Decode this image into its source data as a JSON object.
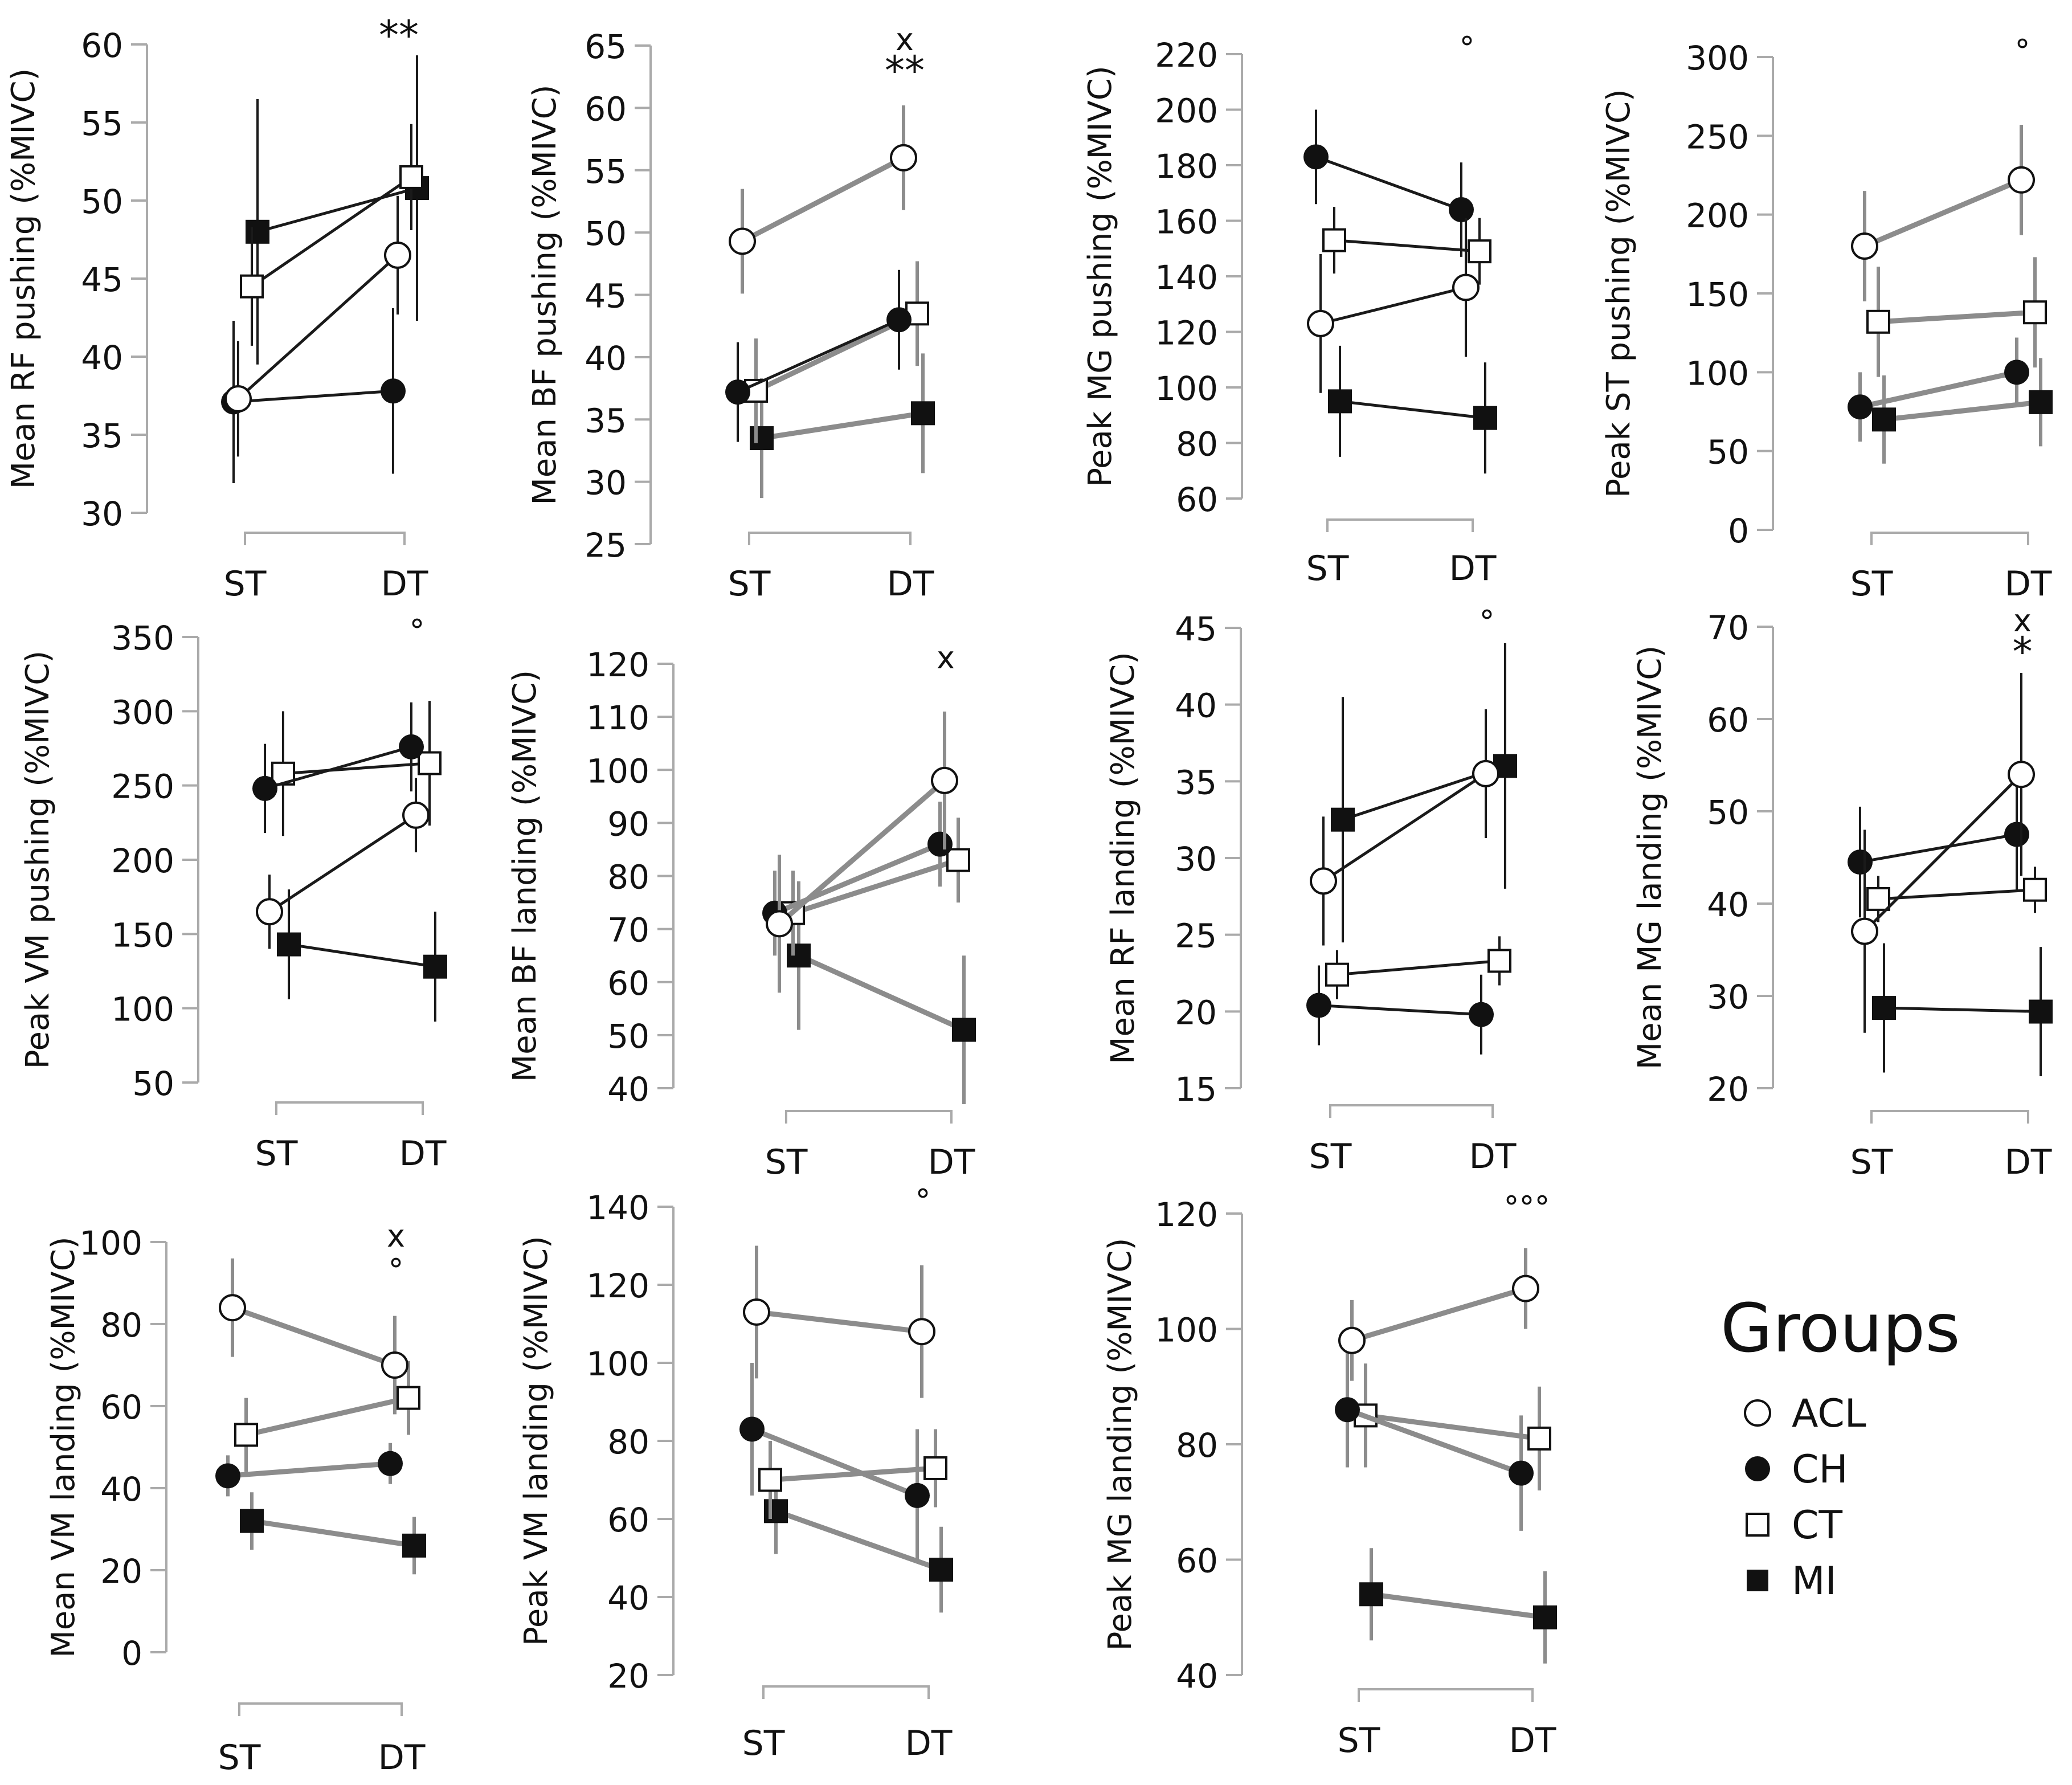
{
  "figure": {
    "legend_title": "Groups"
  },
  "legend": [
    {
      "key": "ACL",
      "label": "ACL",
      "marker": "circle-open"
    },
    {
      "key": "CH",
      "label": "CH",
      "marker": "circle-filled"
    },
    {
      "key": "CT",
      "label": "CT",
      "marker": "square-open"
    },
    {
      "key": "MI",
      "label": "MI",
      "marker": "square-filled"
    }
  ],
  "colors": {
    "black_line": "#1a1a1a",
    "gray_line": "#8c8c8c",
    "axis": "#aaaaaa",
    "marker_edge": "#111111",
    "open_fill": "#ffffff",
    "filled": "#111111"
  },
  "chart_data": [
    {
      "type": "line",
      "id": "mean-rf-pushing",
      "ylabel": "Mean RF pushing (%MIVC)",
      "ylim": [
        30,
        60
      ],
      "yticks": [
        30,
        35,
        40,
        45,
        50,
        55,
        60
      ],
      "categories": [
        "ST",
        "DT"
      ],
      "annotation": "**",
      "series": [
        {
          "name": "ACL",
          "values": [
            37.3,
            46.5
          ],
          "err": [
            3.7,
            3.8
          ],
          "line": "black"
        },
        {
          "name": "CH",
          "values": [
            37.1,
            37.8
          ],
          "err": [
            5.2,
            5.3
          ],
          "line": "black"
        },
        {
          "name": "CT",
          "values": [
            44.5,
            51.5
          ],
          "err": [
            3.8,
            3.4
          ],
          "line": "black"
        },
        {
          "name": "MI",
          "values": [
            48.0,
            50.8
          ],
          "err": [
            8.5,
            8.5
          ],
          "line": "black"
        }
      ]
    },
    {
      "type": "line",
      "id": "mean-bf-pushing",
      "ylabel": "Mean BF pushing (%MIVC)",
      "ylim": [
        25,
        65
      ],
      "yticks": [
        25,
        30,
        35,
        40,
        45,
        50,
        55,
        60,
        65
      ],
      "categories": [
        "ST",
        "DT"
      ],
      "annotation": "x\n**",
      "series": [
        {
          "name": "ACL",
          "values": [
            49.3,
            56.0
          ],
          "err": [
            4.2,
            4.2
          ],
          "line": "gray"
        },
        {
          "name": "CH",
          "values": [
            37.2,
            43.0
          ],
          "err": [
            4.0,
            4.0
          ],
          "line": "black"
        },
        {
          "name": "CT",
          "values": [
            37.3,
            43.5
          ],
          "err": [
            4.2,
            4.2
          ],
          "line": "gray"
        },
        {
          "name": "MI",
          "values": [
            33.5,
            35.5
          ],
          "err": [
            4.8,
            4.8
          ],
          "line": "gray"
        }
      ]
    },
    {
      "type": "line",
      "id": "peak-mg-pushing",
      "ylabel": "Peak MG pushing (%MIVC)",
      "ylim": [
        60,
        220
      ],
      "yticks": [
        60,
        80,
        100,
        120,
        140,
        160,
        180,
        200,
        220
      ],
      "categories": [
        "ST",
        "DT"
      ],
      "annotation": "°",
      "series": [
        {
          "name": "ACL",
          "values": [
            123,
            136
          ],
          "err": [
            25,
            25
          ],
          "line": "black"
        },
        {
          "name": "CH",
          "values": [
            183,
            164
          ],
          "err": [
            17,
            17
          ],
          "line": "black"
        },
        {
          "name": "CT",
          "values": [
            153,
            149
          ],
          "err": [
            12,
            12
          ],
          "line": "black"
        },
        {
          "name": "MI",
          "values": [
            95,
            89
          ],
          "err": [
            20,
            20
          ],
          "line": "black"
        }
      ]
    },
    {
      "type": "line",
      "id": "peak-st-pushing",
      "ylabel": "Peak ST pushing (%MIVC)",
      "ylim": [
        0,
        300
      ],
      "yticks": [
        0,
        50,
        100,
        150,
        200,
        250,
        300
      ],
      "categories": [
        "ST",
        "DT"
      ],
      "annotation": "°",
      "series": [
        {
          "name": "ACL",
          "values": [
            180,
            222
          ],
          "err": [
            35,
            35
          ],
          "line": "gray"
        },
        {
          "name": "CH",
          "values": [
            78,
            100
          ],
          "err": [
            22,
            22
          ],
          "line": "gray"
        },
        {
          "name": "CT",
          "values": [
            132,
            138
          ],
          "err": [
            35,
            35
          ],
          "line": "gray"
        },
        {
          "name": "MI",
          "values": [
            70,
            81
          ],
          "err": [
            28,
            28
          ],
          "line": "gray"
        }
      ]
    },
    {
      "type": "line",
      "id": "peak-vm-pushing",
      "ylabel": "Peak VM pushing (%MIVC)",
      "ylim": [
        50,
        350
      ],
      "yticks": [
        50,
        100,
        150,
        200,
        250,
        300,
        350
      ],
      "categories": [
        "ST",
        "DT"
      ],
      "annotation": "°",
      "series": [
        {
          "name": "ACL",
          "values": [
            165,
            230
          ],
          "err": [
            25,
            25
          ],
          "line": "black"
        },
        {
          "name": "CH",
          "values": [
            248,
            276
          ],
          "err": [
            30,
            30
          ],
          "line": "black"
        },
        {
          "name": "CT",
          "values": [
            258,
            265
          ],
          "err": [
            42,
            42
          ],
          "line": "black"
        },
        {
          "name": "MI",
          "values": [
            143,
            128
          ],
          "err": [
            37,
            37
          ],
          "line": "black"
        }
      ]
    },
    {
      "type": "line",
      "id": "mean-bf-landing",
      "ylabel": "Mean BF landing (%MIVC)",
      "ylim": [
        40,
        120
      ],
      "yticks": [
        40,
        50,
        60,
        70,
        80,
        90,
        100,
        110,
        120
      ],
      "categories": [
        "ST",
        "DT"
      ],
      "annotation": "x",
      "series": [
        {
          "name": "ACL",
          "values": [
            71,
            98
          ],
          "err": [
            13,
            13
          ],
          "line": "gray"
        },
        {
          "name": "CH",
          "values": [
            73,
            86
          ],
          "err": [
            8,
            8
          ],
          "line": "gray"
        },
        {
          "name": "CT",
          "values": [
            73,
            83
          ],
          "err": [
            8,
            8
          ],
          "line": "gray"
        },
        {
          "name": "MI",
          "values": [
            65,
            51
          ],
          "err": [
            14,
            14
          ],
          "line": "gray"
        }
      ]
    },
    {
      "type": "line",
      "id": "mean-rf-landing",
      "ylabel": "Mean RF landing (%MIVC)",
      "ylim": [
        15,
        45
      ],
      "yticks": [
        15,
        20,
        25,
        30,
        35,
        40,
        45
      ],
      "categories": [
        "ST",
        "DT"
      ],
      "annotation": "°",
      "series": [
        {
          "name": "ACL",
          "values": [
            28.5,
            35.5
          ],
          "err": [
            4.2,
            4.2
          ],
          "line": "black"
        },
        {
          "name": "CH",
          "values": [
            20.4,
            19.8
          ],
          "err": [
            2.6,
            2.6
          ],
          "line": "black"
        },
        {
          "name": "CT",
          "values": [
            22.4,
            23.3
          ],
          "err": [
            1.6,
            1.6
          ],
          "line": "black"
        },
        {
          "name": "MI",
          "values": [
            32.5,
            36.0
          ],
          "err": [
            8.0,
            8.0
          ],
          "line": "black"
        }
      ]
    },
    {
      "type": "line",
      "id": "mean-mg-landing",
      "ylabel": "Mean MG landing (%MIVC)",
      "ylim": [
        20,
        70
      ],
      "yticks": [
        20,
        30,
        40,
        50,
        60,
        70
      ],
      "categories": [
        "ST",
        "DT"
      ],
      "annotation": "x\n*",
      "series": [
        {
          "name": "ACL",
          "values": [
            37,
            54
          ],
          "err": [
            11,
            11
          ],
          "line": "black"
        },
        {
          "name": "CH",
          "values": [
            44.5,
            47.5
          ],
          "err": [
            6,
            6
          ],
          "line": "black"
        },
        {
          "name": "CT",
          "values": [
            40.5,
            41.5
          ],
          "err": [
            2.5,
            2.5
          ],
          "line": "black"
        },
        {
          "name": "MI",
          "values": [
            28.7,
            28.3
          ],
          "err": [
            7,
            7
          ],
          "line": "black"
        }
      ]
    },
    {
      "type": "line",
      "id": "mean-vm-landing",
      "ylabel": "Mean VM landing (%MIVC)",
      "ylim": [
        0,
        100
      ],
      "yticks": [
        0,
        20,
        40,
        60,
        80,
        100
      ],
      "categories": [
        "ST",
        "DT"
      ],
      "annotation": "x\n°",
      "series": [
        {
          "name": "ACL",
          "values": [
            84,
            70
          ],
          "err": [
            12,
            12
          ],
          "line": "gray"
        },
        {
          "name": "CH",
          "values": [
            43,
            46
          ],
          "err": [
            5,
            5
          ],
          "line": "gray"
        },
        {
          "name": "CT",
          "values": [
            53,
            62
          ],
          "err": [
            9,
            9
          ],
          "line": "gray"
        },
        {
          "name": "MI",
          "values": [
            32,
            26
          ],
          "err": [
            7,
            7
          ],
          "line": "gray"
        }
      ]
    },
    {
      "type": "line",
      "id": "peak-vm-landing",
      "ylabel": "Peak VM landing (%MIVC)",
      "ylim": [
        20,
        140
      ],
      "yticks": [
        20,
        40,
        60,
        80,
        100,
        120,
        140
      ],
      "categories": [
        "ST",
        "DT"
      ],
      "annotation": "°",
      "series": [
        {
          "name": "ACL",
          "values": [
            113,
            108
          ],
          "err": [
            17,
            17
          ],
          "line": "gray"
        },
        {
          "name": "CH",
          "values": [
            83,
            66
          ],
          "err": [
            17,
            17
          ],
          "line": "gray"
        },
        {
          "name": "CT",
          "values": [
            70,
            73
          ],
          "err": [
            10,
            10
          ],
          "line": "gray"
        },
        {
          "name": "MI",
          "values": [
            62,
            47
          ],
          "err": [
            11,
            11
          ],
          "line": "gray"
        }
      ]
    },
    {
      "type": "line",
      "id": "peak-mg-landing",
      "ylabel": "Peak MG landing (%MIVC)",
      "ylim": [
        40,
        120
      ],
      "yticks": [
        40,
        60,
        80,
        100,
        120
      ],
      "categories": [
        "ST",
        "DT"
      ],
      "annotation": "°°°",
      "series": [
        {
          "name": "ACL",
          "values": [
            98,
            107
          ],
          "err": [
            7,
            7
          ],
          "line": "gray"
        },
        {
          "name": "CH",
          "values": [
            86,
            75
          ],
          "err": [
            10,
            10
          ],
          "line": "gray"
        },
        {
          "name": "CT",
          "values": [
            85,
            81
          ],
          "err": [
            9,
            9
          ],
          "line": "gray"
        },
        {
          "name": "MI",
          "values": [
            54,
            50
          ],
          "err": [
            8,
            8
          ],
          "line": "gray"
        }
      ]
    }
  ]
}
